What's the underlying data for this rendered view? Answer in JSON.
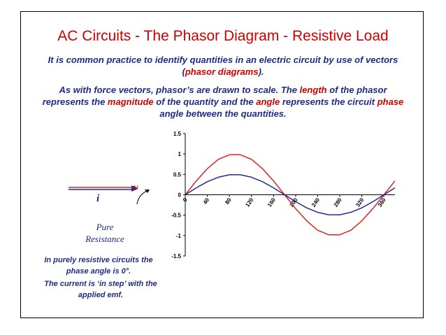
{
  "slide": {
    "title": "AC Circuits - The Phasor Diagram - Resistive Load",
    "para1": {
      "text1": "It is common practice to identify quantities in an electric circuit by use of vectors (",
      "highlight1": "phasor diagrams",
      "text2": ")."
    },
    "para2": {
      "text1": "As with force vectors, phasor’s are drawn to scale. The ",
      "highlight1": "length",
      "text2": " of the phasor represents the ",
      "highlight2": "magnitude",
      "text3": " of the quantity and the ",
      "highlight3": "angle",
      "text4": " represents the circuit ",
      "highlight4": "phase",
      "text5": " angle between the quantities."
    },
    "diagram": {
      "current_label": "i",
      "voltage_label": "v"
    },
    "pure_resistance": {
      "line1": "Pure",
      "line2": "Resistance"
    },
    "note1": "In purely resistive circuits the phase angle is 0°.",
    "note2": "The current is ‘in step’ with the applied emf.",
    "colors": {
      "title": "#cc0000",
      "body_text": "#1f2a86",
      "voltage": "#dd2222",
      "current": "#2a2a8a"
    }
  },
  "chart_data": {
    "type": "line",
    "x": [
      0,
      20,
      40,
      60,
      80,
      100,
      120,
      140,
      160,
      180,
      200,
      220,
      240,
      260,
      280,
      300,
      320,
      340,
      360,
      380
    ],
    "xticks": [
      0,
      40,
      80,
      120,
      160,
      200,
      240,
      280,
      320,
      360
    ],
    "yticks": [
      -1.5,
      -1,
      -0.5,
      0,
      0.5,
      1,
      1.5
    ],
    "ylim": [
      -1.5,
      1.5
    ],
    "xlim": [
      0,
      380
    ],
    "series": [
      {
        "color": "#dd2222",
        "values": [
          0,
          0.34,
          0.64,
          0.87,
          0.98,
          0.98,
          0.87,
          0.64,
          0.34,
          0,
          -0.34,
          -0.64,
          -0.87,
          -0.98,
          -0.98,
          -0.87,
          -0.64,
          -0.34,
          0,
          0.34
        ]
      },
      {
        "color": "#2a2a8a",
        "values": [
          0,
          0.17,
          0.32,
          0.43,
          0.49,
          0.49,
          0.43,
          0.32,
          0.17,
          0,
          -0.17,
          -0.32,
          -0.43,
          -0.49,
          -0.49,
          -0.43,
          -0.32,
          -0.17,
          0,
          0.17
        ]
      }
    ]
  }
}
